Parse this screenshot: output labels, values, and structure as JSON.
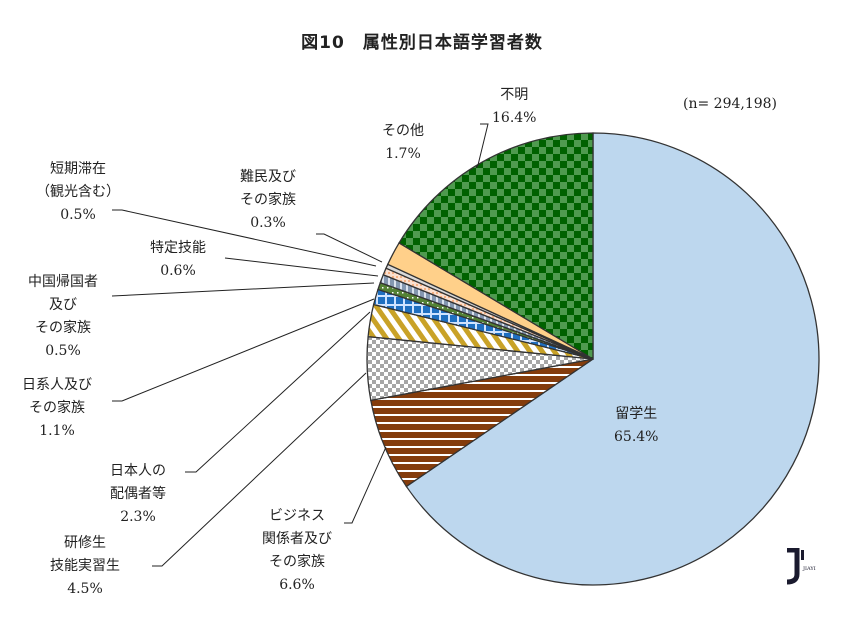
{
  "title": "図10　属性別日本語学習者数",
  "n_label": "(n= 294,198)",
  "logo_text": "JIAYI",
  "chart_data": {
    "type": "pie",
    "title": "図10　属性別日本語学習者数",
    "total_n": 294198,
    "start_angle_deg": 0,
    "direction": "clockwise",
    "slices": [
      {
        "label": "留学生",
        "value": 65.4,
        "color": "#bdd7ee",
        "pattern": "solid"
      },
      {
        "label": "ビジネス関係者及びその家族",
        "value": 6.6,
        "color": "#843c0c",
        "pattern": "horizontal-white-stripes"
      },
      {
        "label": "研修生技能実習生",
        "value": 4.5,
        "color": "#a6a6a6",
        "pattern": "checker-gray"
      },
      {
        "label": "日本人の配偶者等",
        "value": 2.3,
        "color": "#c9a227",
        "pattern": "diagonal-gold-stripes"
      },
      {
        "label": "日系人及びその家族",
        "value": 1.1,
        "color": "#1f6fc0",
        "pattern": "blue-grid"
      },
      {
        "label": "中国帰国者及びその家族",
        "value": 0.5,
        "color": "#548235",
        "pattern": "green-dots"
      },
      {
        "label": "特定技能",
        "value": 0.6,
        "color": "#8497b0",
        "pattern": "gray-blue-vertical"
      },
      {
        "label": "短期滞在（観光含む）",
        "value": 0.5,
        "color": "#f4b183",
        "pattern": "salmon-dots"
      },
      {
        "label": "難民及びその家族",
        "value": 0.3,
        "color": "#d9d9d9",
        "pattern": "light-gray"
      },
      {
        "label": "その他",
        "value": 1.7,
        "color": "#ffd08a",
        "pattern": "solid"
      },
      {
        "label": "不明",
        "value": 16.4,
        "color": "#006100",
        "pattern": "checker-green"
      }
    ]
  },
  "labels": {
    "ryugakusei": {
      "l1": "留学生",
      "pct": "65.4%"
    },
    "business": {
      "l1": "ビジネス",
      "l2": "関係者及び",
      "l3": "その家族",
      "pct": "6.6%"
    },
    "kenshu": {
      "l1": "研修生",
      "l2": "技能実習生",
      "pct": "4.5%"
    },
    "haigusha": {
      "l1": "日本人の",
      "l2": "配偶者等",
      "pct": "2.3%"
    },
    "nikkei": {
      "l1": "日系人及び",
      "l2": "その家族",
      "pct": "1.1%"
    },
    "chugoku": {
      "l1": "中国帰国者",
      "l2": "及び",
      "l3": "その家族",
      "pct": "0.5%"
    },
    "tokutei": {
      "l1": "特定技能",
      "pct": "0.6%"
    },
    "tanki": {
      "l1": "短期滞在",
      "l2": "（観光含む）",
      "pct": "0.5%"
    },
    "nanmin": {
      "l1": "難民及び",
      "l2": "その家族",
      "pct": "0.3%"
    },
    "sonota": {
      "l1": "その他",
      "pct": "1.7%"
    },
    "fumei": {
      "l1": "不明",
      "pct": "16.4%"
    }
  }
}
